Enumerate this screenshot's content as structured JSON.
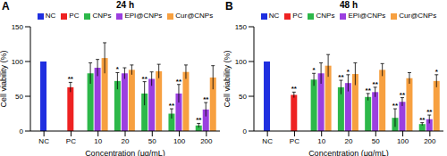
{
  "chart_data": [
    {
      "type": "bar",
      "panel_label": "A",
      "title": "24 h",
      "x_label": "Concentration (μg/mL)",
      "y_label": "Cell viability (%)",
      "categories": [
        "NC",
        "PC",
        "10",
        "20",
        "50",
        "100",
        "200"
      ],
      "ylim": [
        0,
        150
      ],
      "yticks": [
        0,
        50,
        100,
        150
      ],
      "grid": false,
      "legend": "top",
      "series": [
        {
          "name": "NC",
          "color": "#1f2fe0",
          "values": [
            100,
            null,
            null,
            null,
            null,
            null,
            null
          ],
          "errors": [
            null,
            null,
            null,
            null,
            null,
            null,
            null
          ],
          "significance": [
            null,
            null,
            null,
            null,
            null,
            null,
            null
          ]
        },
        {
          "name": "PC",
          "color": "#ee2222",
          "values": [
            null,
            63,
            null,
            null,
            null,
            null,
            null
          ],
          "errors": [
            null,
            7,
            null,
            null,
            null,
            null,
            null
          ],
          "significance": [
            null,
            "**",
            null,
            null,
            null,
            null,
            null
          ]
        },
        {
          "name": "CNPs",
          "color": "#2db84a",
          "values": [
            null,
            null,
            83,
            72,
            54,
            25,
            8
          ],
          "errors": [
            null,
            null,
            15,
            12,
            17,
            7,
            3
          ],
          "significance": [
            null,
            null,
            null,
            "*",
            "**",
            "**",
            "**"
          ]
        },
        {
          "name": "EPI@CNPs",
          "color": "#9b3fe0",
          "values": [
            null,
            null,
            91,
            83,
            75,
            54,
            31
          ],
          "errors": [
            null,
            null,
            12,
            8,
            10,
            13,
            10
          ],
          "significance": [
            null,
            null,
            null,
            null,
            null,
            "**",
            "**"
          ]
        },
        {
          "name": "Cur@CNPs",
          "color": "#f7a040",
          "values": [
            null,
            null,
            105,
            88,
            86,
            85,
            77
          ],
          "errors": [
            null,
            null,
            22,
            7,
            10,
            10,
            17
          ],
          "significance": [
            null,
            null,
            null,
            null,
            null,
            null,
            null
          ]
        }
      ]
    },
    {
      "type": "bar",
      "panel_label": "B",
      "title": "48 h",
      "x_label": "Concentration (μg/mL)",
      "y_label": "Cell viability (%)",
      "categories": [
        "NC",
        "PC",
        "10",
        "20",
        "50",
        "100",
        "200"
      ],
      "ylim": [
        0,
        150
      ],
      "yticks": [
        0,
        50,
        100,
        150
      ],
      "grid": false,
      "legend": "top",
      "series": [
        {
          "name": "NC",
          "color": "#1f2fe0",
          "values": [
            100,
            null,
            null,
            null,
            null,
            null,
            null
          ],
          "errors": [
            null,
            null,
            null,
            null,
            null,
            null,
            null
          ],
          "significance": [
            null,
            null,
            null,
            null,
            null,
            null,
            null
          ]
        },
        {
          "name": "PC",
          "color": "#ee2222",
          "values": [
            null,
            52,
            null,
            null,
            null,
            null,
            null
          ],
          "errors": [
            null,
            4,
            null,
            null,
            null,
            null,
            null
          ],
          "significance": [
            null,
            "**",
            null,
            null,
            null,
            null,
            null
          ]
        },
        {
          "name": "CNPs",
          "color": "#2db84a",
          "values": [
            null,
            null,
            74,
            63,
            49,
            19,
            10
          ],
          "errors": [
            null,
            null,
            9,
            10,
            5,
            13,
            2
          ],
          "significance": [
            null,
            null,
            "*",
            "**",
            "**",
            "**",
            "**"
          ]
        },
        {
          "name": "EPI@CNPs",
          "color": "#9b3fe0",
          "values": [
            null,
            null,
            83,
            69,
            56,
            42,
            17
          ],
          "errors": [
            null,
            null,
            15,
            12,
            7,
            6,
            6
          ],
          "significance": [
            null,
            null,
            null,
            "*",
            "**",
            "**",
            "**"
          ]
        },
        {
          "name": "Cur@CNPs",
          "color": "#f7a040",
          "values": [
            null,
            null,
            94,
            82,
            88,
            76,
            72
          ],
          "errors": [
            null,
            null,
            16,
            16,
            9,
            8,
            9
          ],
          "significance": [
            null,
            null,
            null,
            null,
            null,
            null,
            "*"
          ]
        }
      ]
    }
  ]
}
